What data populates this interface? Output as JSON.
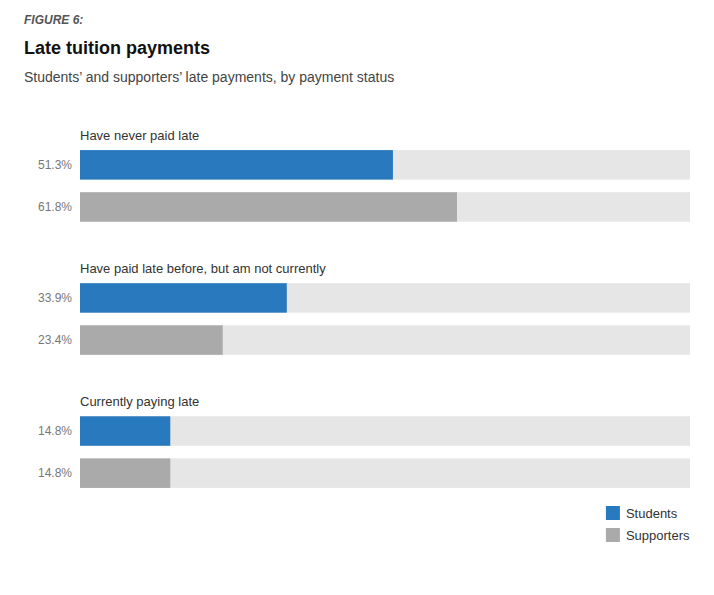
{
  "chart_data": {
    "type": "bar",
    "orientation": "horizontal",
    "title": "Late tuition payments",
    "subtitle": "Students’ and supporters’ late payments, by payment status",
    "annotations": [
      "FIGURE 6:"
    ],
    "categories": [
      "Have never paid late",
      "Have paid late before, but am not currently",
      "Currently paying late"
    ],
    "series": [
      {
        "name": "Students",
        "color": "#2879BD",
        "values": [
          51.3,
          33.9,
          14.8
        ],
        "value_labels": [
          "51.3%",
          "33.9%",
          "14.8%"
        ]
      },
      {
        "name": "Supporters",
        "color": "#AAAAAA",
        "values": [
          61.8,
          23.4,
          14.8
        ],
        "value_labels": [
          "61.8%",
          "23.4%",
          "14.8%"
        ]
      }
    ],
    "xlim": [
      0,
      100
    ],
    "data_labels": true,
    "tick_labels": false,
    "grid": false,
    "legend": "lower right"
  }
}
